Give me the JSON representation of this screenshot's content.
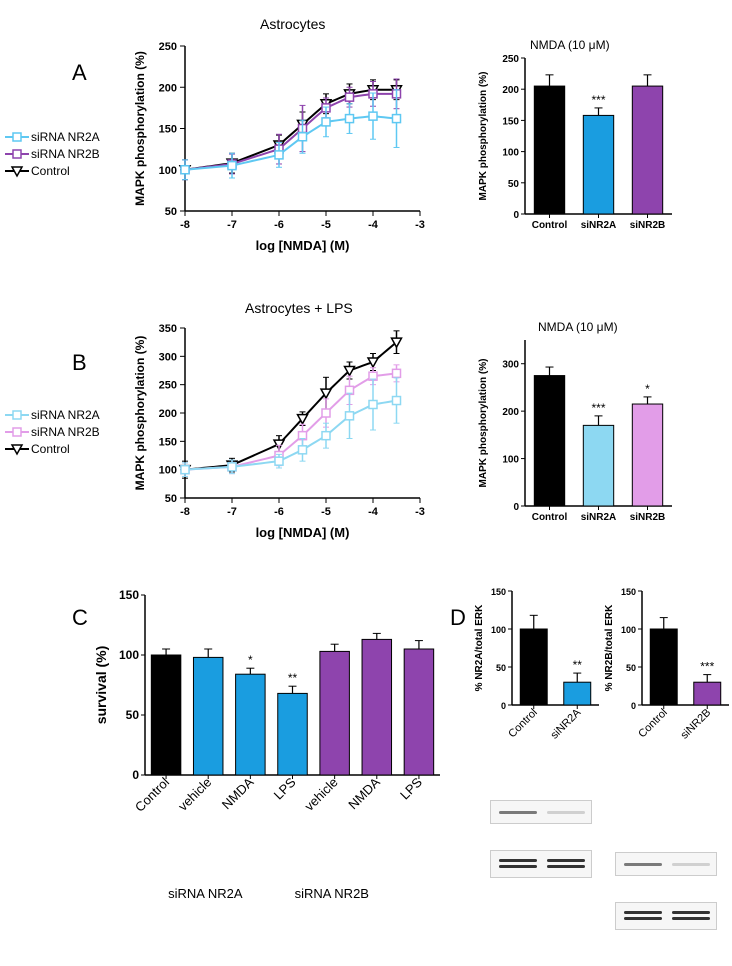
{
  "colors": {
    "control": "#000000",
    "nr2a_light": "#5ec8f2",
    "nr2a_dark": "#1a9de0",
    "nr2b_light": "#c77ce0",
    "nr2b_dark": "#8e44ad",
    "bg": "#ffffff"
  },
  "fonts": {
    "title": 14,
    "axis": 13,
    "tick": 11,
    "legend": 12
  },
  "panelA": {
    "letter": "A",
    "title": "Astrocytes",
    "legend": [
      "siRNA NR2A",
      "siRNA NR2B",
      "Control"
    ],
    "legend_markers": [
      "#5ec8f2",
      "#8e44ad",
      "#000000"
    ],
    "legend_shapes": [
      "square",
      "square",
      "tri-down"
    ],
    "dose": {
      "xlabel": "log [NMDA] (M)",
      "ylabel": "MAPK phosphorylation (%)",
      "xlim": [
        -8,
        -3
      ],
      "ylim": [
        50,
        250
      ],
      "xtick": [
        -8,
        -7,
        -6,
        -5,
        -4,
        -3
      ],
      "ytick": [
        50,
        100,
        150,
        200,
        250
      ],
      "x": [
        -8,
        -7,
        -6,
        -5.5,
        -5,
        -4.5,
        -4,
        -3.5
      ],
      "series": {
        "Control": {
          "color": "#000000",
          "marker": "tri-down",
          "y": [
            100,
            108,
            130,
            155,
            180,
            192,
            197,
            197
          ],
          "err": [
            12,
            12,
            12,
            15,
            12,
            12,
            12,
            12
          ]
        },
        "NR2A": {
          "color": "#5ec8f2",
          "marker": "square",
          "y": [
            100,
            105,
            118,
            140,
            158,
            162,
            165,
            162
          ],
          "err": [
            12,
            15,
            15,
            20,
            18,
            18,
            28,
            35
          ]
        },
        "NR2B": {
          "color": "#8e44ad",
          "marker": "square",
          "y": [
            100,
            107,
            125,
            150,
            175,
            188,
            192,
            192
          ],
          "err": [
            12,
            12,
            18,
            28,
            12,
            12,
            15,
            18
          ]
        }
      }
    },
    "bar": {
      "title": "NMDA (10 μM)",
      "ylabel": "MAPK phosphorylation (%)",
      "ylim": [
        0,
        250
      ],
      "ytick": [
        0,
        50,
        100,
        150,
        200,
        250
      ],
      "categories": [
        "Control",
        "siNR2A",
        "siNR2B"
      ],
      "values": [
        205,
        158,
        205
      ],
      "errors": [
        18,
        12,
        18
      ],
      "fills": [
        "#000000",
        "#1a9de0",
        "#8e44ad"
      ],
      "sig": [
        "",
        "***",
        ""
      ]
    }
  },
  "panelB": {
    "letter": "B",
    "title": "Astrocytes + LPS",
    "legend": [
      "siRNA NR2A",
      "siRNA NR2B",
      "Control"
    ],
    "legend_markers": [
      "#8dd8f2",
      "#e29de8",
      "#000000"
    ],
    "legend_shapes": [
      "square",
      "square",
      "tri-down"
    ],
    "dose": {
      "xlabel": "log [NMDA] (M)",
      "ylabel": "MAPK phosphorylation (%)",
      "xlim": [
        -8,
        -3
      ],
      "ylim": [
        50,
        350
      ],
      "xtick": [
        -8,
        -7,
        -6,
        -5,
        -4,
        -3
      ],
      "ytick": [
        50,
        100,
        150,
        200,
        250,
        300,
        350
      ],
      "x": [
        -8,
        -7,
        -6,
        -5.5,
        -5,
        -4.5,
        -4,
        -3.5
      ],
      "series": {
        "Control": {
          "color": "#000000",
          "marker": "tri-down",
          "y": [
            100,
            108,
            145,
            190,
            235,
            275,
            290,
            325
          ],
          "err": [
            15,
            12,
            15,
            12,
            28,
            15,
            15,
            20
          ]
        },
        "NR2A": {
          "color": "#8dd8f2",
          "marker": "square",
          "y": [
            100,
            105,
            115,
            135,
            160,
            195,
            215,
            222
          ],
          "err": [
            12,
            12,
            12,
            20,
            22,
            40,
            45,
            40
          ]
        },
        "NR2B": {
          "color": "#e29de8",
          "marker": "square",
          "y": [
            100,
            105,
            125,
            160,
            200,
            240,
            265,
            270
          ],
          "err": [
            12,
            12,
            18,
            20,
            25,
            25,
            15,
            15
          ]
        }
      }
    },
    "bar": {
      "title": "NMDA (10 μM)",
      "ylabel": "MAPK phosphorylation (%)",
      "ylim": [
        0,
        350
      ],
      "ytick": [
        0,
        100,
        200,
        300
      ],
      "categories": [
        "Control",
        "siNR2A",
        "siNR2B"
      ],
      "values": [
        275,
        170,
        215
      ],
      "errors": [
        18,
        20,
        15
      ],
      "fills": [
        "#000000",
        "#8dd8f2",
        "#e29de8"
      ],
      "sig": [
        "",
        "***",
        "*"
      ]
    }
  },
  "panelC": {
    "letter": "C",
    "ylabel": "survival (%)",
    "ylim": [
      0,
      150
    ],
    "ytick": [
      0,
      50,
      100,
      150
    ],
    "categories": [
      "Control",
      "vehicle",
      "NMDA",
      "LPS",
      "vehicle",
      "NMDA",
      "LPS"
    ],
    "values": [
      100,
      98,
      84,
      68,
      103,
      113,
      105
    ],
    "errors": [
      5,
      7,
      5,
      6,
      6,
      5,
      7
    ],
    "fills": [
      "#000000",
      "#1a9de0",
      "#1a9de0",
      "#1a9de0",
      "#8e44ad",
      "#8e44ad",
      "#8e44ad"
    ],
    "sig": [
      "",
      "",
      "*",
      "**",
      "",
      "",
      ""
    ],
    "group_labels": [
      "siRNA NR2A",
      "siRNA NR2B"
    ]
  },
  "panelD": {
    "letter": "D",
    "bars": [
      {
        "ylabel": "% NR2A/total ERK",
        "ylim": [
          0,
          150
        ],
        "ytick": [
          0,
          50,
          100,
          150
        ],
        "categories": [
          "Control",
          "siNR2A"
        ],
        "values": [
          100,
          30
        ],
        "errors": [
          18,
          12
        ],
        "fills": [
          "#000000",
          "#1a9de0"
        ],
        "sig": [
          "",
          "**"
        ]
      },
      {
        "ylabel": "% NR2B/total ERK",
        "ylim": [
          0,
          150
        ],
        "ytick": [
          0,
          50,
          100,
          150
        ],
        "categories": [
          "Control",
          "siNR2B"
        ],
        "values": [
          100,
          30
        ],
        "errors": [
          15,
          10
        ],
        "fills": [
          "#000000",
          "#8e44ad"
        ],
        "sig": [
          "",
          "***"
        ]
      }
    ],
    "blots": {
      "rows": 2,
      "cols": 2,
      "band_intensity": [
        [
          [
            0.6,
            0.15
          ],
          [
            0.55,
            0.15
          ]
        ],
        [
          [
            0.8,
            0.8
          ],
          [
            0.8,
            0.8
          ]
        ]
      ]
    }
  }
}
